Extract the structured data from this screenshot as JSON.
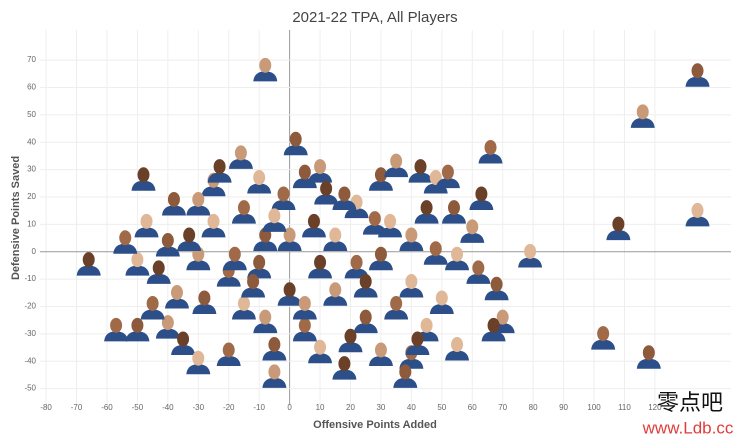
{
  "chart_data": {
    "type": "scatter",
    "title": "2021-22 TPA, All Players",
    "xlabel": "Offensive Points Added",
    "ylabel": "Defensive Points Saved",
    "xlim": [
      -82,
      145
    ],
    "ylim": [
      -56,
      81
    ],
    "xticks": [
      -80,
      -70,
      -60,
      -50,
      -40,
      -30,
      -20,
      -10,
      0,
      10,
      20,
      30,
      40,
      50,
      60,
      70,
      80,
      90,
      100,
      110,
      120
    ],
    "yticks": [
      -50,
      -40,
      -30,
      -20,
      -10,
      0,
      10,
      20,
      30,
      40,
      50,
      60,
      70
    ],
    "grid": true,
    "color": "#2c4f8a",
    "x": [
      134,
      116,
      108,
      134,
      103,
      118,
      -8,
      -66,
      79,
      66,
      2,
      -16,
      -48,
      -47,
      -57,
      -50,
      -40,
      -35,
      -30,
      -20,
      -28,
      -37,
      -43,
      -50,
      -54,
      -38,
      -25,
      -23,
      -10,
      -2,
      5,
      10,
      12,
      22,
      28,
      30,
      35,
      43,
      48,
      52,
      54,
      60,
      63,
      55,
      62,
      68,
      70,
      67,
      45,
      40,
      38,
      30,
      18,
      10,
      5,
      -5,
      -8,
      0,
      -15,
      -20,
      -10,
      -30,
      -33,
      -25,
      -15,
      -8,
      0,
      8,
      15,
      22,
      30,
      40,
      45,
      40,
      35,
      25,
      15,
      10,
      -5,
      -18,
      -40,
      -30,
      20,
      50,
      48,
      -12,
      5,
      25,
      33,
      -45,
      18,
      -5,
      42,
      55
    ],
    "values": [
      65,
      50,
      9,
      14,
      -31,
      -38,
      67,
      -4,
      -1,
      37,
      40,
      35,
      27,
      10,
      -28,
      -28,
      -27,
      -33,
      -40,
      -37,
      -18,
      -16,
      -7,
      -4,
      4,
      18,
      25,
      30,
      26,
      20,
      28,
      30,
      22,
      17,
      11,
      27,
      32,
      30,
      26,
      28,
      15,
      8,
      20,
      -2,
      -7,
      -13,
      -25,
      -28,
      -28,
      -38,
      -45,
      -37,
      -42,
      -36,
      -28,
      -35,
      -25,
      -15,
      -20,
      -8,
      -5,
      -2,
      5,
      10,
      15,
      5,
      5,
      10,
      5,
      -5,
      -2,
      5,
      15,
      -12,
      -20,
      -25,
      -15,
      -5,
      12,
      -2,
      3,
      18,
      -32,
      -18,
      0,
      -12,
      -20,
      -12,
      10,
      -20,
      20,
      -45,
      -33,
      -35
    ],
    "annotations": [
      "零点吧",
      "www.Ldb.cc"
    ]
  }
}
